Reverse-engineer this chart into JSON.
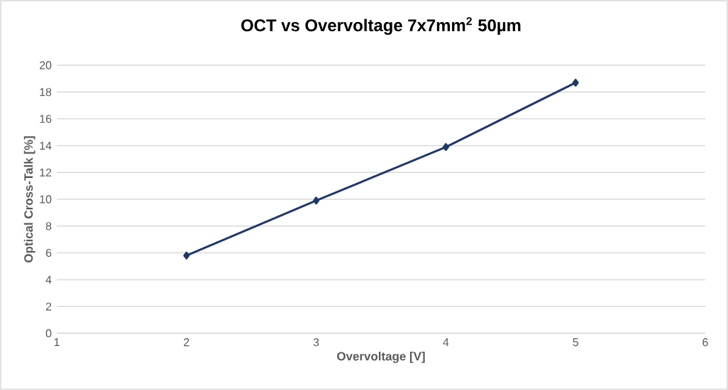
{
  "chart_data": {
    "type": "line",
    "title": "OCT vs Overvoltage 7x7mm$^{2}$ 50µm",
    "xlabel": "Overvoltage [V]",
    "ylabel": "Optical Cross-Talk [%]",
    "x": [
      2,
      3,
      4,
      5
    ],
    "series": [
      {
        "color": "#203864",
        "values": [
          5.8,
          9.9,
          13.9,
          18.7
        ]
      }
    ],
    "xlim": [
      1,
      6
    ],
    "xticks": [
      1,
      2,
      3,
      4,
      5,
      6
    ],
    "ylim": [
      0,
      20
    ],
    "yticks": [
      0,
      2,
      4,
      6,
      8,
      10,
      12,
      14,
      16,
      18,
      20
    ],
    "grid": "y",
    "marker": "diamond",
    "line_style": "solid"
  }
}
